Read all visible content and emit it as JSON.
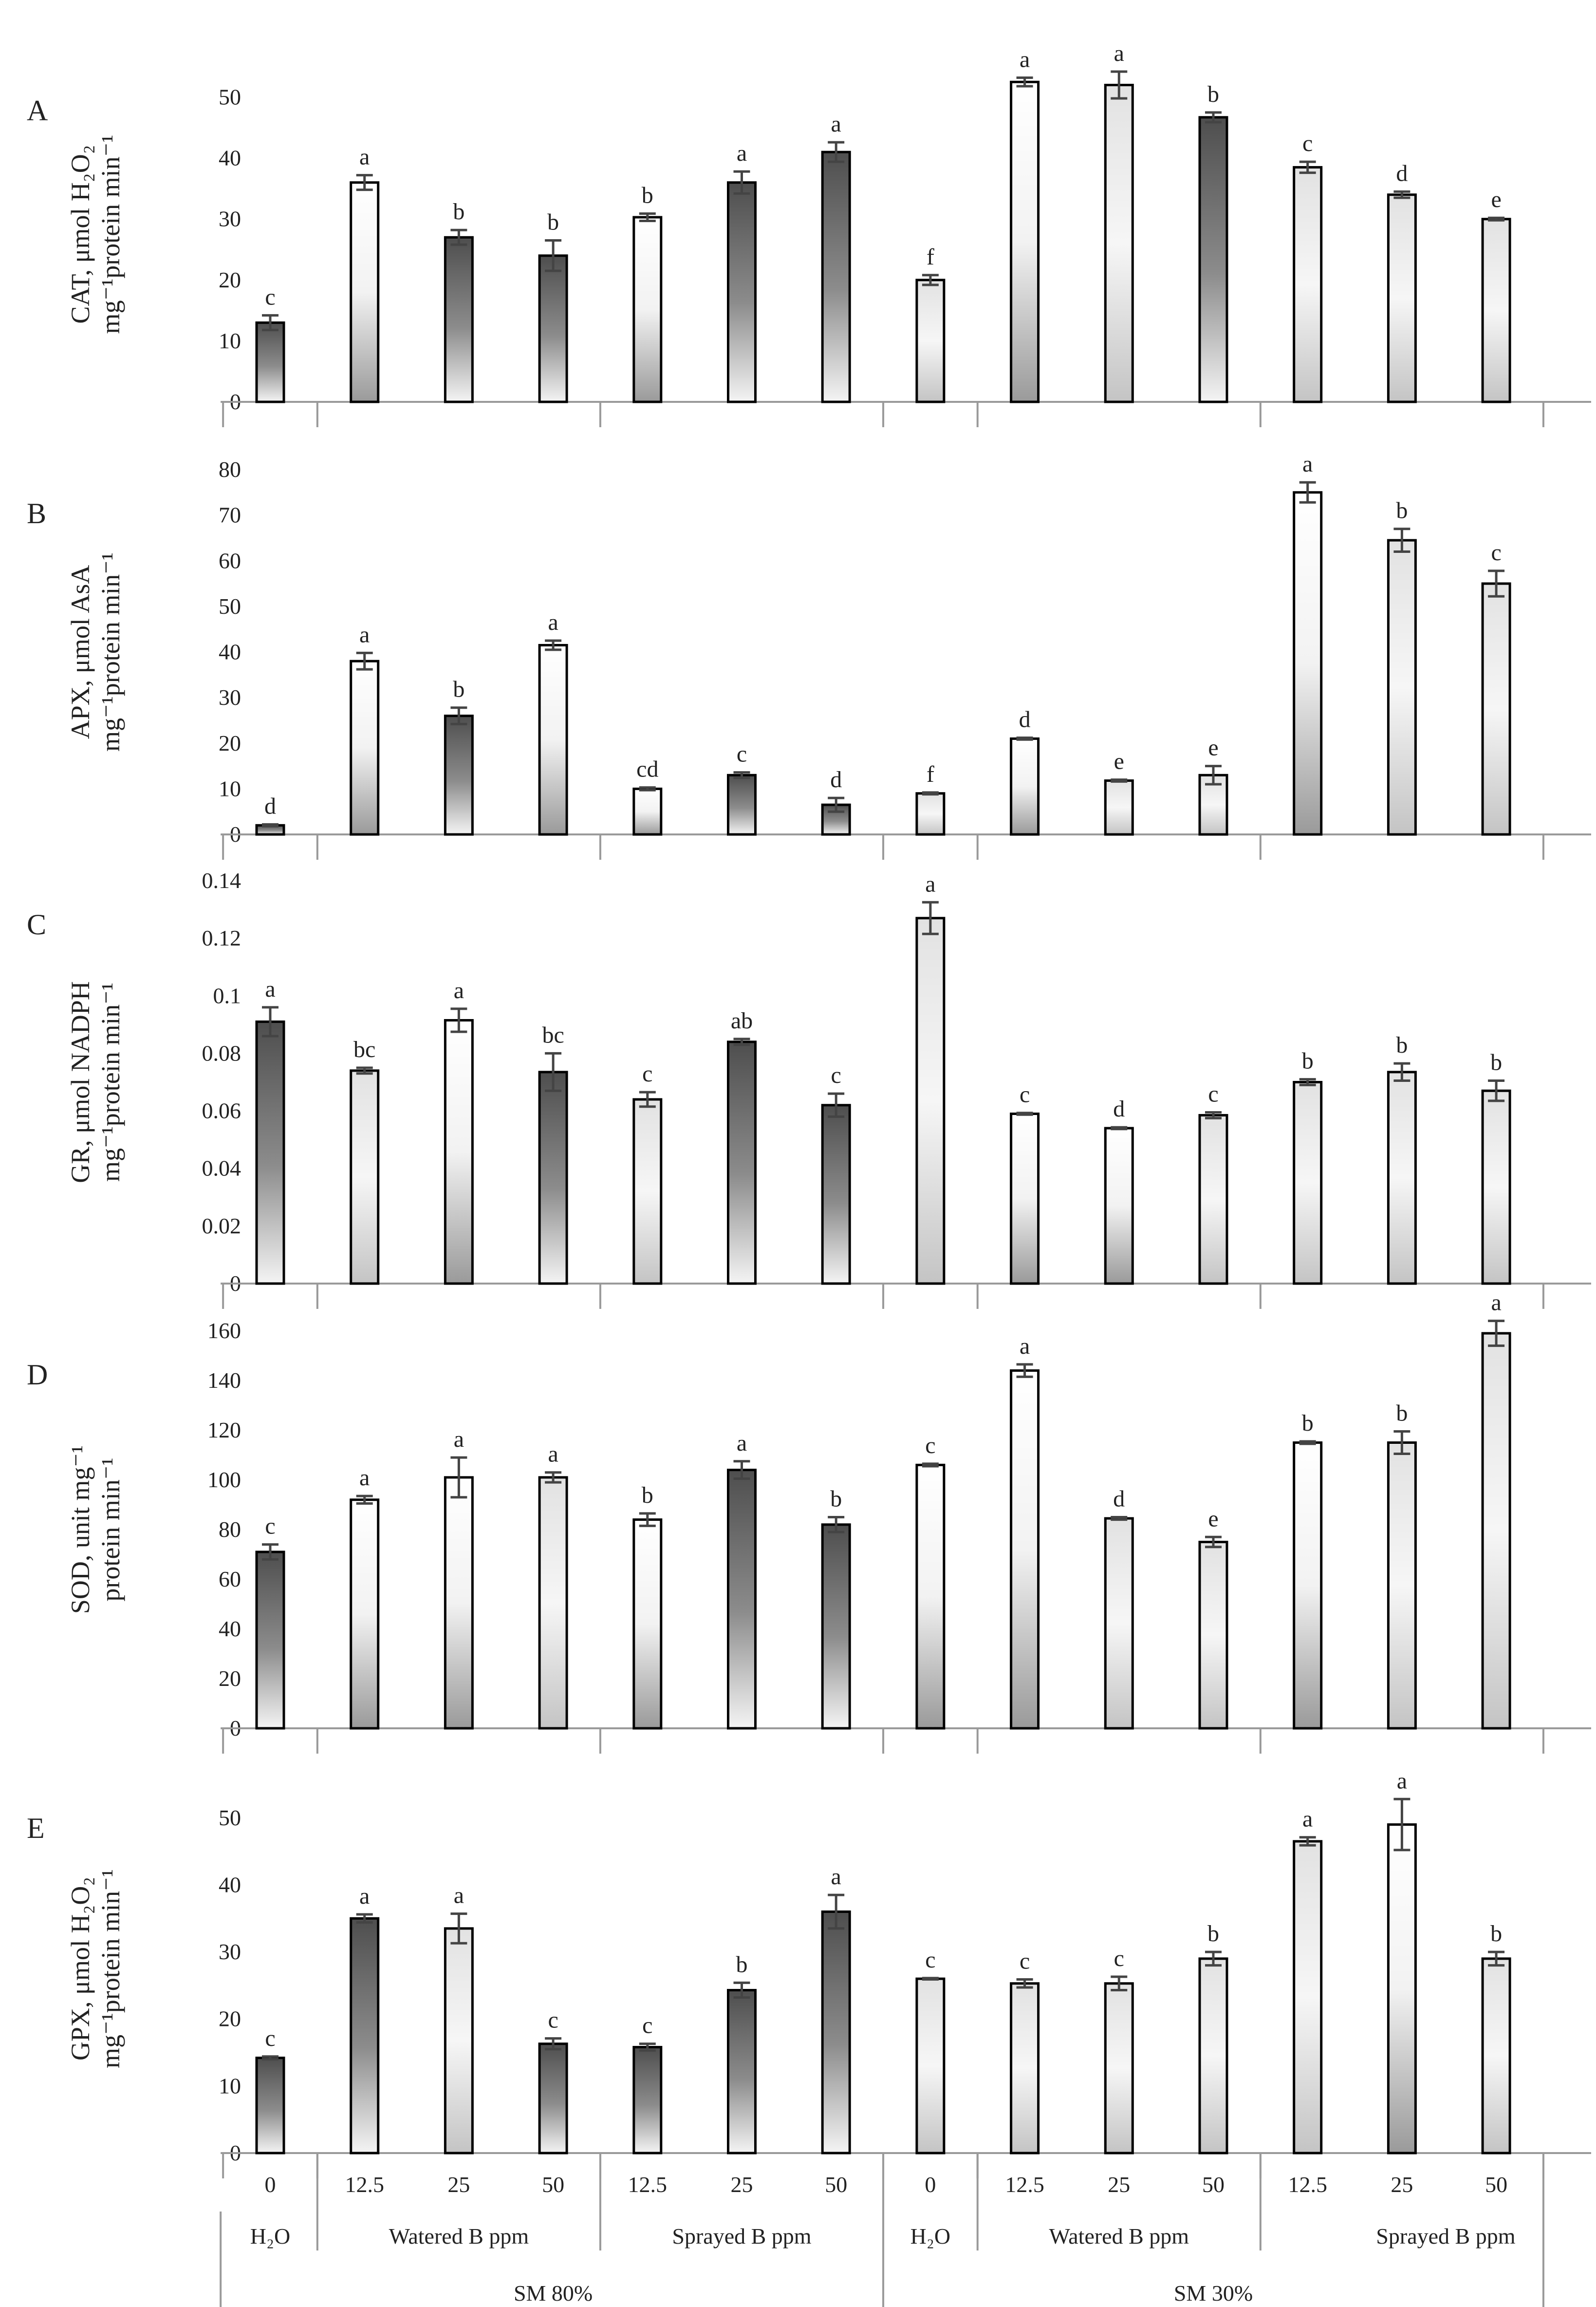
{
  "colors": {
    "axis": "#9a9a9a",
    "bar_dark_top": "#5a5a5a",
    "bar_light": "#ffffff",
    "bar_mid": "#cfcfcf",
    "errorbar": "#444444"
  },
  "x_axis": {
    "levels": [
      "0",
      "12.5",
      "25",
      "50",
      "12.5",
      "25",
      "50",
      "0",
      "12.5",
      "25",
      "50",
      "12.5",
      "25",
      "50"
    ],
    "treatments": [
      {
        "label": "H₂O",
        "span": [
          0,
          0
        ]
      },
      {
        "label": "Watered B ppm",
        "span": [
          1,
          3
        ]
      },
      {
        "label": "Sprayed B ppm",
        "span": [
          4,
          6
        ]
      },
      {
        "label": "H₂O",
        "span": [
          7,
          7
        ]
      },
      {
        "label": "Watered B ppm",
        "span": [
          8,
          10
        ]
      },
      {
        "label": "Sprayed B ppm",
        "span": [
          11,
          13
        ]
      }
    ],
    "moisture": [
      {
        "label": "SM 80%",
        "span": [
          0,
          6
        ]
      },
      {
        "label": "SM 30%",
        "span": [
          7,
          13
        ]
      }
    ]
  },
  "chart_data": [
    {
      "type": "bar",
      "panel": "A",
      "ylabel_line1": "CAT, μmol H₂O₂",
      "ylabel_line2": "mg⁻¹protein min⁻¹",
      "ylim": [
        0,
        55
      ],
      "yticks": [
        0,
        10,
        20,
        30,
        40,
        50
      ],
      "values": [
        13,
        36,
        27,
        24,
        30.3,
        36,
        41,
        20,
        52.5,
        52,
        46.7,
        38.5,
        34,
        30
      ],
      "errors": [
        1.2,
        1.2,
        1.2,
        2.5,
        0.6,
        1.8,
        1.6,
        0.8,
        0.7,
        2.2,
        0.8,
        0.9,
        0.5,
        0.2
      ],
      "letters": [
        "c",
        "a",
        "b",
        "b",
        "b",
        "a",
        "a",
        "f",
        "a",
        "a",
        "b",
        "c",
        "d",
        "e"
      ],
      "styles": [
        "dark",
        "light",
        "dark",
        "dark",
        "light",
        "dark",
        "dark",
        "mid",
        "light",
        "mid",
        "dark",
        "mid",
        "mid",
        "mid"
      ]
    },
    {
      "type": "bar",
      "panel": "B",
      "ylabel_line1": "APX, μmol AsA",
      "ylabel_line2": "mg⁻¹protein min⁻¹",
      "ylim": [
        0,
        80
      ],
      "yticks": [
        0,
        10,
        20,
        30,
        40,
        50,
        60,
        70,
        80
      ],
      "values": [
        2,
        38,
        26,
        41.5,
        10,
        13,
        6.5,
        9,
        21,
        11.8,
        13,
        75,
        64.5,
        55
      ],
      "errors": [
        0.2,
        1.8,
        1.8,
        1.0,
        0.3,
        0.6,
        1.5,
        0.2,
        0.2,
        0.2,
        2.0,
        2.2,
        2.5,
        2.8
      ],
      "letters": [
        "d",
        "a",
        "b",
        "a",
        "cd",
        "c",
        "d",
        "f",
        "d",
        "e",
        "e",
        "a",
        "b",
        "c"
      ],
      "styles": [
        "dark",
        "light",
        "dark",
        "light",
        "light",
        "dark",
        "dark",
        "mid",
        "light",
        "mid",
        "mid",
        "light",
        "mid",
        "mid"
      ]
    },
    {
      "type": "bar",
      "panel": "C",
      "ylabel_line1": "GR, μmol NADPH",
      "ylabel_line2": "mg⁻¹protein min⁻¹",
      "ylim": [
        0,
        0.14
      ],
      "yticks": [
        0,
        0.02,
        0.04,
        0.06,
        0.08,
        0.1,
        0.12,
        0.14
      ],
      "ytick_labels": [
        "0",
        "0.02",
        "0.04",
        "0.06",
        "0.08",
        "0.1",
        "0.12",
        "0.14"
      ],
      "values": [
        0.091,
        0.074,
        0.0915,
        0.0735,
        0.064,
        0.084,
        0.062,
        0.127,
        0.059,
        0.054,
        0.0585,
        0.07,
        0.0735,
        0.067
      ],
      "errors": [
        0.005,
        0.001,
        0.004,
        0.0065,
        0.0025,
        0.001,
        0.004,
        0.0055,
        0.0003,
        0.0003,
        0.001,
        0.001,
        0.003,
        0.0035
      ],
      "letters": [
        "a",
        "bc",
        "a",
        "bc",
        "c",
        "ab",
        "c",
        "a",
        "c",
        "d",
        "c",
        "b",
        "b",
        "b"
      ],
      "styles": [
        "dark",
        "mid",
        "light",
        "dark",
        "mid",
        "dark",
        "dark",
        "mid",
        "light",
        "light",
        "mid",
        "mid",
        "mid",
        "mid"
      ]
    },
    {
      "type": "bar",
      "panel": "D",
      "ylabel_line1": "SOD, unit mg⁻¹",
      "ylabel_line2": "protein min⁻¹",
      "ylim": [
        0,
        160
      ],
      "yticks": [
        0,
        20,
        40,
        60,
        80,
        100,
        120,
        140,
        160
      ],
      "values": [
        71,
        92,
        101,
        101,
        84,
        104,
        82,
        106,
        144,
        84.5,
        75,
        115,
        115,
        159
      ],
      "errors": [
        3,
        1.5,
        8,
        2,
        2.5,
        3.5,
        3,
        0.5,
        2.5,
        0.5,
        2,
        0.5,
        4.5,
        5
      ],
      "letters": [
        "c",
        "a",
        "a",
        "a",
        "b",
        "a",
        "b",
        "c",
        "a",
        "d",
        "e",
        "b",
        "b",
        "a"
      ],
      "styles": [
        "dark",
        "light",
        "light",
        "mid",
        "light",
        "dark",
        "dark",
        "light",
        "light",
        "mid",
        "mid",
        "light",
        "mid",
        "mid"
      ]
    },
    {
      "type": "bar",
      "panel": "E",
      "ylabel_line1": "GPX, μmol H₂O₂",
      "ylabel_line2": "mg⁻¹protein min⁻¹",
      "ylim": [
        0,
        55
      ],
      "yticks": [
        0,
        10,
        20,
        30,
        40,
        50
      ],
      "values": [
        14.2,
        35,
        33.5,
        16.3,
        15.8,
        24.3,
        36,
        26,
        25.3,
        25.3,
        29,
        46.5,
        49,
        29
      ],
      "errors": [
        0.2,
        0.6,
        2.2,
        0.8,
        0.5,
        1.1,
        2.5,
        0.1,
        0.6,
        1.0,
        1.0,
        0.6,
        3.8,
        1.0
      ],
      "letters": [
        "c",
        "a",
        "a",
        "c",
        "c",
        "b",
        "a",
        "c",
        "c",
        "c",
        "b",
        "a",
        "a",
        "b"
      ],
      "styles": [
        "dark",
        "dark",
        "mid",
        "dark",
        "dark",
        "dark",
        "dark",
        "mid",
        "mid",
        "mid",
        "mid",
        "mid",
        "light",
        "mid"
      ]
    }
  ]
}
